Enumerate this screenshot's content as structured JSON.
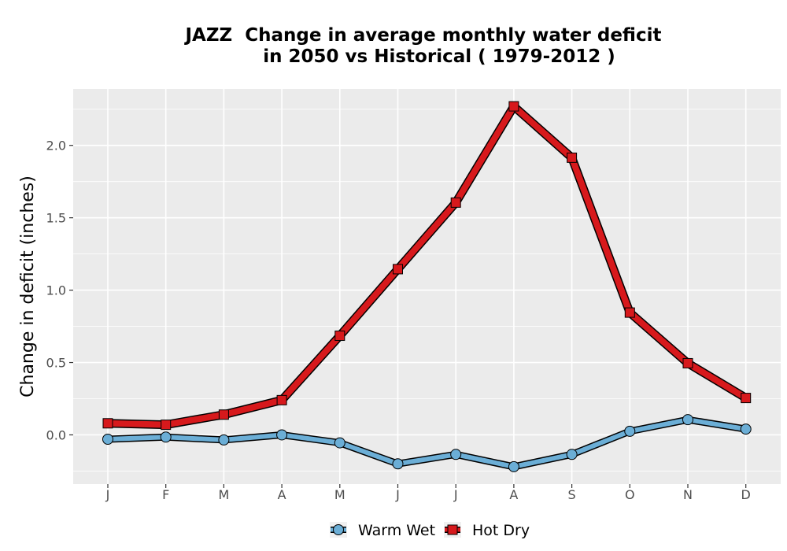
{
  "chart_data": {
    "type": "line",
    "title_line1": "JAZZ  Change in average monthly water deficit",
    "title_line2": "in 2050 vs Historical ( 1979-2012 )",
    "xlabel": "",
    "ylabel": "Change in deficit (inches)",
    "categories": [
      "J",
      "F",
      "M",
      "A",
      "M",
      "J",
      "J",
      "A",
      "S",
      "O",
      "N",
      "D"
    ],
    "ylim": [
      -0.34,
      2.39
    ],
    "yticks": [
      0.0,
      0.5,
      1.0,
      1.5,
      2.0
    ],
    "ytick_labels": [
      "0.0",
      "0.5",
      "1.0",
      "1.5",
      "2.0"
    ],
    "grid": true,
    "legend_position": "bottom",
    "series": [
      {
        "name": "Warm Wet",
        "color": "#6baed6",
        "marker": "circle",
        "values": [
          -0.03,
          -0.015,
          -0.035,
          0.0,
          -0.055,
          -0.2,
          -0.135,
          -0.22,
          -0.135,
          0.025,
          0.105,
          0.04
        ]
      },
      {
        "name": "Hot Dry",
        "color": "#d7191c",
        "marker": "square",
        "values": [
          0.08,
          0.07,
          0.14,
          0.24,
          0.685,
          1.145,
          1.605,
          2.27,
          1.915,
          0.845,
          0.495,
          0.255
        ]
      }
    ]
  }
}
